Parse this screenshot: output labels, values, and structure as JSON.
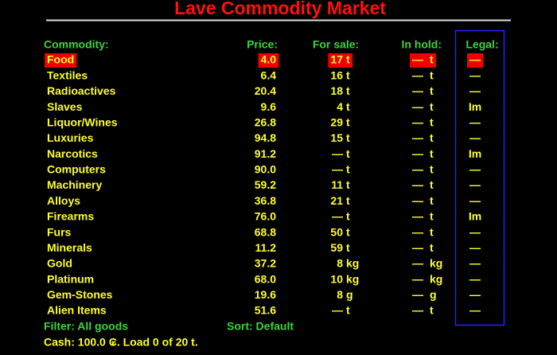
{
  "header": {
    "title": "Lave Commodity Market"
  },
  "table": {
    "columns": [
      "Commodity:",
      "Price:",
      "For sale:",
      "In hold:",
      "Legal:"
    ],
    "selected": 0,
    "rows": [
      {
        "name": "Food",
        "price": "4.0",
        "sale": "17",
        "sale_unit": "t",
        "hold": "—",
        "hold_unit": "t",
        "legal": "—"
      },
      {
        "name": "Textiles",
        "price": "6.4",
        "sale": "16",
        "sale_unit": "t",
        "hold": "—",
        "hold_unit": "t",
        "legal": "—"
      },
      {
        "name": "Radioactives",
        "price": "20.4",
        "sale": "18",
        "sale_unit": "t",
        "hold": "—",
        "hold_unit": "t",
        "legal": "—"
      },
      {
        "name": "Slaves",
        "price": "9.6",
        "sale": "4",
        "sale_unit": "t",
        "hold": "—",
        "hold_unit": "t",
        "legal": "Im"
      },
      {
        "name": "Liquor/Wines",
        "price": "26.8",
        "sale": "29",
        "sale_unit": "t",
        "hold": "—",
        "hold_unit": "t",
        "legal": "—"
      },
      {
        "name": "Luxuries",
        "price": "94.8",
        "sale": "15",
        "sale_unit": "t",
        "hold": "—",
        "hold_unit": "t",
        "legal": "—"
      },
      {
        "name": "Narcotics",
        "price": "91.2",
        "sale": "—",
        "sale_unit": "t",
        "hold": "—",
        "hold_unit": "t",
        "legal": "Im"
      },
      {
        "name": "Computers",
        "price": "90.0",
        "sale": "—",
        "sale_unit": "t",
        "hold": "—",
        "hold_unit": "t",
        "legal": "—"
      },
      {
        "name": "Machinery",
        "price": "59.2",
        "sale": "11",
        "sale_unit": "t",
        "hold": "—",
        "hold_unit": "t",
        "legal": "—"
      },
      {
        "name": "Alloys",
        "price": "36.8",
        "sale": "21",
        "sale_unit": "t",
        "hold": "—",
        "hold_unit": "t",
        "legal": "—"
      },
      {
        "name": "Firearms",
        "price": "76.0",
        "sale": "—",
        "sale_unit": "t",
        "hold": "—",
        "hold_unit": "t",
        "legal": "Im"
      },
      {
        "name": "Furs",
        "price": "68.8",
        "sale": "50",
        "sale_unit": "t",
        "hold": "—",
        "hold_unit": "t",
        "legal": "—"
      },
      {
        "name": "Minerals",
        "price": "11.2",
        "sale": "59",
        "sale_unit": "t",
        "hold": "—",
        "hold_unit": "t",
        "legal": "—"
      },
      {
        "name": "Gold",
        "price": "37.2",
        "sale": "8",
        "sale_unit": "kg",
        "hold": "—",
        "hold_unit": "kg",
        "legal": "—"
      },
      {
        "name": "Platinum",
        "price": "68.0",
        "sale": "10",
        "sale_unit": "kg",
        "hold": "—",
        "hold_unit": "kg",
        "legal": "—"
      },
      {
        "name": "Gem-Stones",
        "price": "19.6",
        "sale": "8",
        "sale_unit": "g",
        "hold": "—",
        "hold_unit": "g",
        "legal": "—"
      },
      {
        "name": "Alien Items",
        "price": "51.6",
        "sale": "—",
        "sale_unit": "t",
        "hold": "—",
        "hold_unit": "t",
        "legal": "—"
      }
    ]
  },
  "footer": {
    "filter": "Filter: All goods",
    "sort": "Sort: Default",
    "status": "Cash: 100.0 ₢. Load 0 of 20 t."
  }
}
